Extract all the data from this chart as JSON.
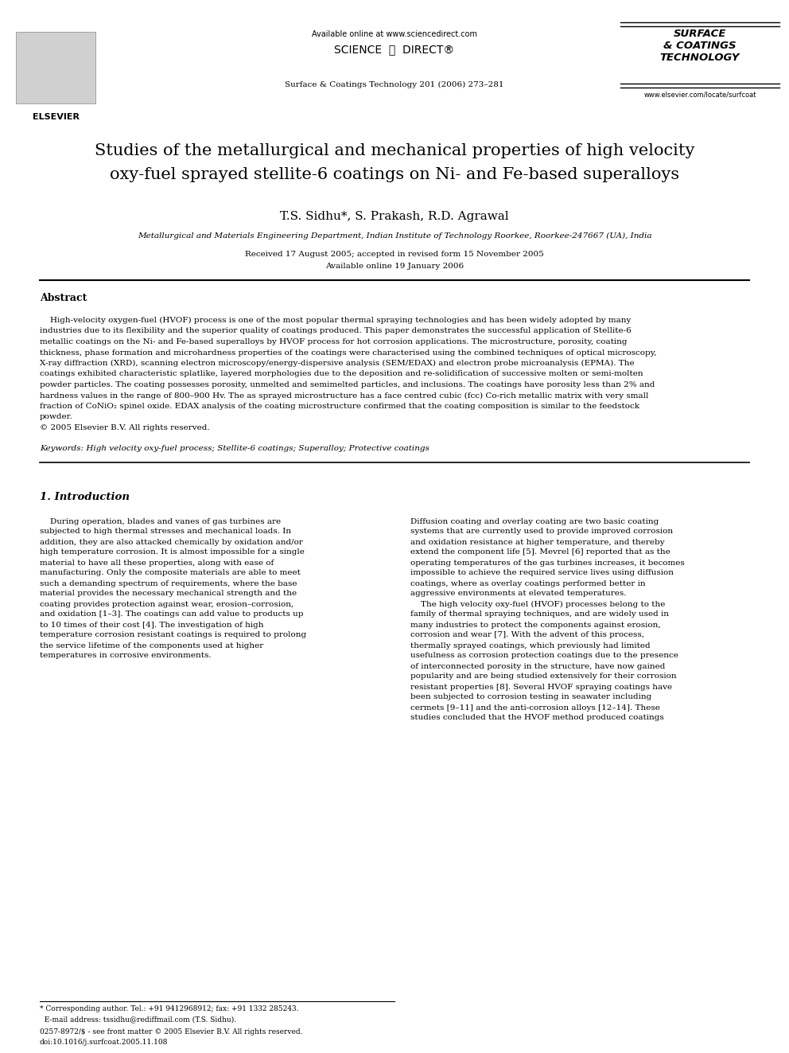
{
  "title_line1": "Studies of the metallurgical and mechanical properties of high velocity",
  "title_line2": "oxy-fuel sprayed stellite-6 coatings on Ni- and Fe-based superalloys",
  "authors": "T.S. Sidhu*, S. Prakash, R.D. Agrawal",
  "affiliation": "Metallurgical and Materials Engineering Department, Indian Institute of Technology Roorkee, Roorkee-247667 (UA), India",
  "received": "Received 17 August 2005; accepted in revised form 15 November 2005",
  "available": "Available online 19 January 2006",
  "header_text": "Available online at www.sciencedirect.com",
  "sciencedirect": "SCIENCE  ⓐ  DIRECT®",
  "journal_info": "Surface & Coatings Technology 201 (2006) 273–281",
  "journal_website": "www.elsevier.com/locate/surfcoat",
  "elsevier_text": "ELSEVIER",
  "journal_logo": "SURFACE\n& COATINGS\nTECHNOLOGY",
  "abstract_title": "Abstract",
  "abstract_lines": [
    "    High-velocity oxygen-fuel (HVOF) process is one of the most popular thermal spraying technologies and has been widely adopted by many",
    "industries due to its flexibility and the superior quality of coatings produced. This paper demonstrates the successful application of Stellite-6",
    "metallic coatings on the Ni- and Fe-based superalloys by HVOF process for hot corrosion applications. The microstructure, porosity, coating",
    "thickness, phase formation and microhardness properties of the coatings were characterised using the combined techniques of optical microscopy,",
    "X-ray diffraction (XRD), scanning electron microscopy/energy-dispersive analysis (SEM/EDAX) and electron probe microanalysis (EPMA). The",
    "coatings exhibited characteristic splatlike, layered morphologies due to the deposition and re-solidification of successive molten or semi-molten",
    "powder particles. The coating possesses porosity, unmelted and semimelted particles, and inclusions. The coatings have porosity less than 2% and",
    "hardness values in the range of 800–900 Hv. The as sprayed microstructure has a face centred cubic (fcc) Co-rich metallic matrix with very small",
    "fraction of CoNiO₂ spinel oxide. EDAX analysis of the coating microstructure confirmed that the coating composition is similar to the feedstock",
    "powder.",
    "© 2005 Elsevier B.V. All rights reserved."
  ],
  "keywords": "Keywords: High velocity oxy-fuel process; Stellite-6 coatings; Superalloy; Protective coatings",
  "section1_title": "1. Introduction",
  "left_col": [
    "    During operation, blades and vanes of gas turbines are",
    "subjected to high thermal stresses and mechanical loads. In",
    "addition, they are also attacked chemically by oxidation and/or",
    "high temperature corrosion. It is almost impossible for a single",
    "material to have all these properties, along with ease of",
    "manufacturing. Only the composite materials are able to meet",
    "such a demanding spectrum of requirements, where the base",
    "material provides the necessary mechanical strength and the",
    "coating provides protection against wear, erosion–corrosion,",
    "and oxidation [1–3]. The coatings can add value to products up",
    "to 10 times of their cost [4]. The investigation of high",
    "temperature corrosion resistant coatings is required to prolong",
    "the service lifetime of the components used at higher",
    "temperatures in corrosive environments."
  ],
  "right_col": [
    "Diffusion coating and overlay coating are two basic coating",
    "systems that are currently used to provide improved corrosion",
    "and oxidation resistance at higher temperature, and thereby",
    "extend the component life [5]. Mevrel [6] reported that as the",
    "operating temperatures of the gas turbines increases, it becomes",
    "impossible to achieve the required service lives using diffusion",
    "coatings, where as overlay coatings performed better in",
    "aggressive environments at elevated temperatures.",
    "    The high velocity oxy-fuel (HVOF) processes belong to the",
    "family of thermal spraying techniques, and are widely used in",
    "many industries to protect the components against erosion,",
    "corrosion and wear [7]. With the advent of this process,",
    "thermally sprayed coatings, which previously had limited",
    "usefulness as corrosion protection coatings due to the presence",
    "of interconnected porosity in the structure, have now gained",
    "popularity and are being studied extensively for their corrosion",
    "resistant properties [8]. Several HVOF spraying coatings have",
    "been subjected to corrosion testing in seawater including",
    "cermets [9–11] and the anti-corrosion alloys [12–14]. These",
    "studies concluded that the HVOF method produced coatings"
  ],
  "footer1": "* Corresponding author. Tel.: +91 9412968912; fax: +91 1332 285243.",
  "footer2": "  E-mail address: tssidhu@rediffmail.com (T.S. Sidhu).",
  "footer3": "0257-8972/$ - see front matter © 2005 Elsevier B.V. All rights reserved.",
  "footer4": "doi:10.1016/j.surfcoat.2005.11.108",
  "bg_color": "#ffffff"
}
